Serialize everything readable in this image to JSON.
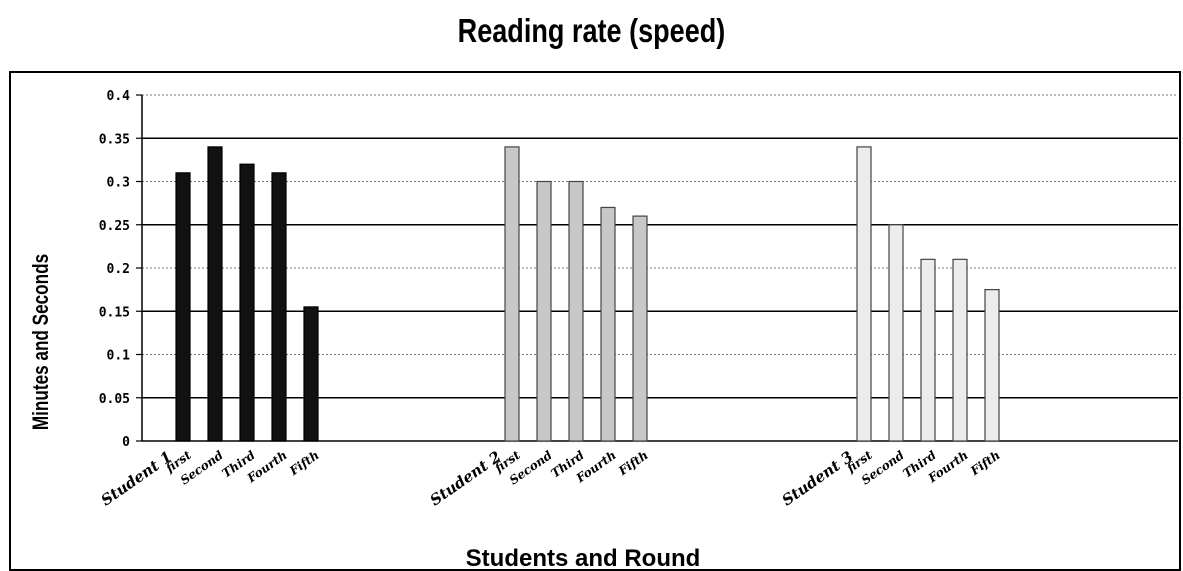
{
  "chart_data": {
    "type": "bar",
    "title": "Reading rate (speed)",
    "xlabel": "Students and Round",
    "ylabel": "Minutes and Seconds",
    "ylim": [
      0,
      0.4
    ],
    "yticks": [
      "0",
      "0.05",
      "0.1",
      "0.15",
      "0.2",
      "0.25",
      "0.3",
      "0.35",
      "0.4"
    ],
    "grid": true,
    "legend": "none",
    "groups": [
      {
        "name": "Student 1",
        "color": "#111111",
        "categories": [
          "first",
          "Second",
          "Third",
          "Fourth",
          "Fifth"
        ],
        "values": [
          0.31,
          0.34,
          0.32,
          0.31,
          0.155
        ]
      },
      {
        "name": "Student 2",
        "color": "#c8c8c8",
        "categories": [
          "first",
          "Second",
          "Third",
          "Fourth",
          "Fifth"
        ],
        "values": [
          0.34,
          0.3,
          0.3,
          0.27,
          0.26
        ]
      },
      {
        "name": "Student 3",
        "color": "#ececec",
        "categories": [
          "first",
          "Second",
          "Third",
          "Fourth",
          "Fifth"
        ],
        "values": [
          0.34,
          0.25,
          0.21,
          0.21,
          0.175
        ]
      }
    ]
  }
}
